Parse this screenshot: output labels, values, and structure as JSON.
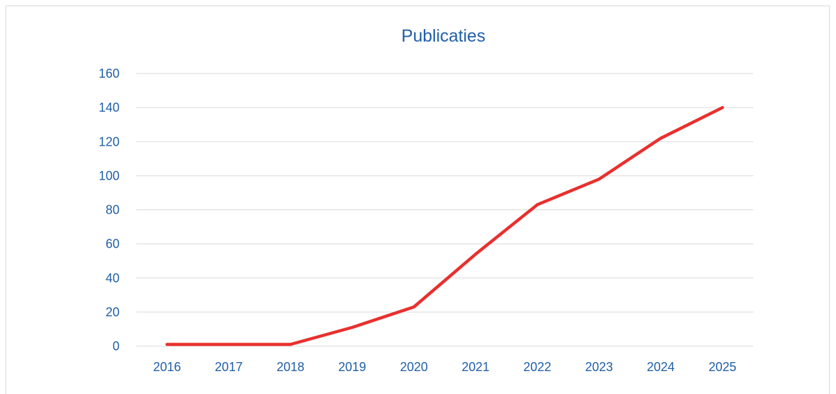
{
  "chart_data": {
    "type": "line",
    "title": "Publicaties",
    "xlabel": "",
    "ylabel": "",
    "categories": [
      "2016",
      "2017",
      "2018",
      "2019",
      "2020",
      "2021",
      "2022",
      "2023",
      "2024",
      "2025"
    ],
    "series": [
      {
        "values": [
          1,
          1,
          1,
          11,
          23,
          54,
          83,
          98,
          122,
          140
        ]
      }
    ],
    "ylim": [
      0,
      160
    ],
    "yticks": [
      "0",
      "20",
      "40",
      "60",
      "80",
      "100",
      "120",
      "140",
      "160"
    ],
    "grid": true,
    "legend": "none"
  },
  "colors": {
    "line": "#e8302e",
    "text": "#1f5fa8",
    "grid": "#d9d9d9"
  }
}
